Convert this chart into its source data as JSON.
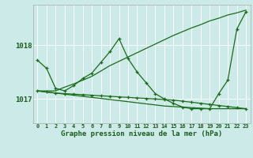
{
  "title": "Graphe pression niveau de la mer (hPa)",
  "bg_color": "#cceae7",
  "grid_color": "#ffffff",
  "line_color": "#1a6b1a",
  "xlabel_color": "#1a5c1a",
  "hours": [
    0,
    1,
    2,
    3,
    4,
    5,
    6,
    7,
    8,
    9,
    10,
    11,
    12,
    13,
    14,
    15,
    16,
    17,
    18,
    19,
    20,
    21,
    22,
    23
  ],
  "yticks": [
    1017,
    1018
  ],
  "ylim": [
    1016.55,
    1018.75
  ],
  "xlim": [
    -0.5,
    23.5
  ],
  "s1": [
    1017.72,
    1017.57,
    1017.2,
    1017.15,
    1017.25,
    1017.38,
    1017.48,
    1017.68,
    1017.88,
    1018.12,
    1017.75,
    1017.5,
    1017.3,
    1017.1,
    1017.0,
    1016.92,
    1016.85,
    1016.82,
    1016.82,
    1016.82,
    1017.1,
    1017.35,
    1018.3,
    1018.62
  ],
  "s2": [
    1017.15,
    1017.15,
    1017.15,
    1017.22,
    1017.28,
    1017.35,
    1017.42,
    1017.52,
    1017.62,
    1017.7,
    1017.78,
    1017.86,
    1017.94,
    1018.02,
    1018.1,
    1018.18,
    1018.25,
    1018.32,
    1018.38,
    1018.45,
    1018.5,
    1018.56,
    1018.6,
    1018.65
  ],
  "s3": [
    1017.15,
    1017.13,
    1017.11,
    1017.09,
    1017.07,
    1017.05,
    1017.03,
    1017.01,
    1016.99,
    1016.97,
    1016.95,
    1016.93,
    1016.91,
    1016.89,
    1016.87,
    1016.86,
    1016.85,
    1016.84,
    1016.83,
    1016.82,
    1016.82,
    1016.82,
    1016.82,
    1016.82
  ],
  "s4": [
    1017.15,
    1017.13,
    1017.11,
    1017.1,
    1017.09,
    1017.08,
    1017.07,
    1017.06,
    1017.05,
    1017.04,
    1017.03,
    1017.02,
    1017.01,
    1017.0,
    1016.99,
    1016.98,
    1016.96,
    1016.94,
    1016.92,
    1016.9,
    1016.88,
    1016.86,
    1016.84,
    1016.82
  ]
}
